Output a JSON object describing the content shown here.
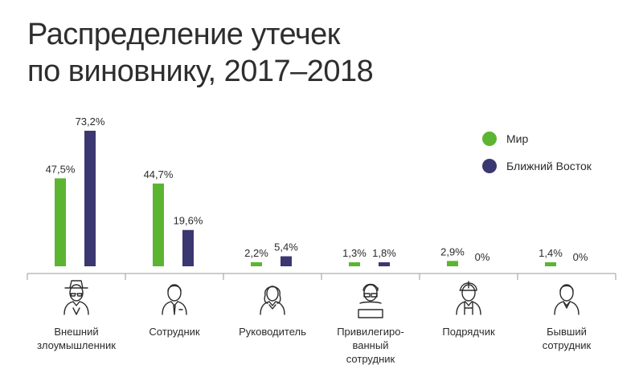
{
  "title_line1": "Распределение утечек",
  "title_line2": "по виновнику, 2017–2018",
  "colors": {
    "world": "#5cb531",
    "middle_east": "#3b3770",
    "axis": "#9a9a9a"
  },
  "chart_data": {
    "type": "bar",
    "title": "Распределение утечек по виновнику, 2017–2018",
    "categories": [
      "Внешний злоумышленник",
      "Сотрудник",
      "Руководитель",
      "Привилегиро-ванный сотрудник",
      "Подрядчик",
      "Бывший сотрудник"
    ],
    "category_lines": [
      [
        "Внешний",
        "злоумышленник"
      ],
      [
        "Сотрудник"
      ],
      [
        "Руководитель"
      ],
      [
        "Привилегиро-",
        "ванный",
        "сотрудник"
      ],
      [
        "Подрядчик"
      ],
      [
        "Бывший",
        "сотрудник"
      ]
    ],
    "category_icons": [
      "hacker-icon",
      "employee-icon",
      "manager-icon",
      "privileged-user-icon",
      "contractor-icon",
      "former-employee-icon"
    ],
    "series": [
      {
        "name": "Мир",
        "values": [
          47.5,
          44.7,
          2.2,
          1.3,
          2.9,
          1.4
        ],
        "labels": [
          "47,5%",
          "44,7%",
          "2,2%",
          "1,3%",
          "2,9%",
          "1,4%"
        ]
      },
      {
        "name": "Ближний Восток",
        "values": [
          73.2,
          19.6,
          5.4,
          1.8,
          0,
          0
        ],
        "labels": [
          "73,2%",
          "19,6%",
          "5,4%",
          "1,8%",
          "0%",
          "0%"
        ]
      }
    ],
    "ylim": [
      0,
      73.2
    ],
    "legend_position": "top-right",
    "grid": false
  }
}
